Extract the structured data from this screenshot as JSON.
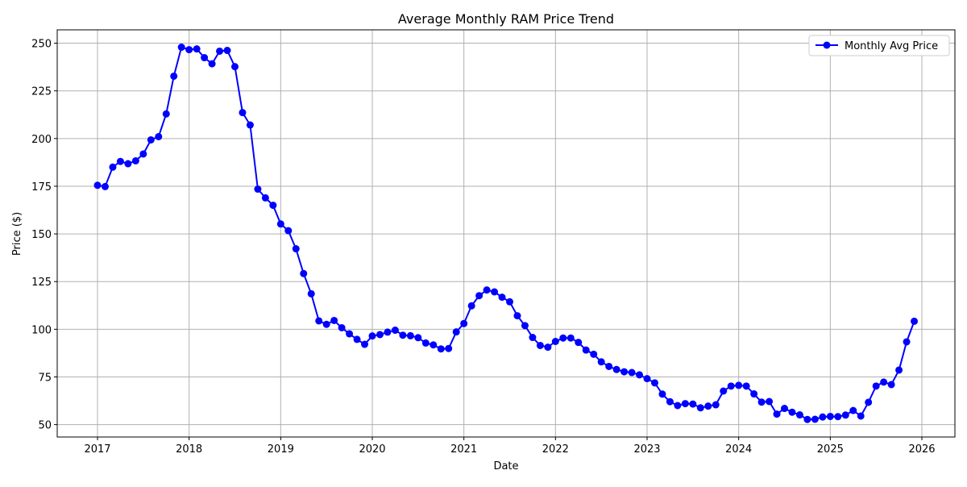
{
  "chart_data": {
    "type": "line",
    "title": "Average Monthly RAM Price Trend",
    "xlabel": "Date",
    "ylabel": "Price ($)",
    "xlim": [
      "2016-07",
      "2026-05"
    ],
    "ylim": [
      43.5,
      257
    ],
    "x_ticks": [
      "2017",
      "2018",
      "2019",
      "2020",
      "2021",
      "2022",
      "2023",
      "2024",
      "2025",
      "2026"
    ],
    "y_ticks": [
      50,
      75,
      100,
      125,
      150,
      175,
      200,
      225,
      250
    ],
    "grid": true,
    "legend": "top-right",
    "series": [
      {
        "name": "Monthly Avg Price",
        "color": "#0000ff",
        "marker": "circle",
        "start": "2017-01",
        "frequency": "monthly",
        "values": [
          175.5,
          174.8,
          185,
          188,
          186.8,
          188.3,
          191.9,
          199.3,
          201,
          212.9,
          232.7,
          247.9,
          246.6,
          247,
          242.4,
          239.2,
          245.8,
          246.2,
          237.7,
          213.6,
          207.1,
          173.5,
          168.9,
          165,
          155.2,
          151.7,
          142.2,
          129.2,
          118.6,
          104.4,
          102.6,
          104.6,
          100.8,
          97.6,
          94.7,
          92.1,
          96.5,
          97.2,
          98.5,
          99.5,
          96.9,
          96.6,
          95.6,
          92.8,
          91.8,
          89.7,
          89.9,
          98.6,
          103,
          112.3,
          117.6,
          120.6,
          119.6,
          116.8,
          114.4,
          107.1,
          101.9,
          95.7,
          91.5,
          90.6,
          93.6,
          95.4,
          95.4,
          93.1,
          89.1,
          86.9,
          82.9,
          80.5,
          78.9,
          77.7,
          77.3,
          76.1,
          74.1,
          71.9,
          66,
          62,
          60,
          61,
          60.8,
          58.8,
          59.7,
          60.4,
          67.6,
          70.2,
          70.6,
          70.2,
          66.1,
          61.8,
          62.1,
          55.5,
          58.5,
          56.5,
          55.1,
          52.7,
          52.8,
          54,
          54.3,
          54.2,
          55,
          57.4,
          54.5,
          61.7,
          70.2,
          72.3,
          71,
          78.6,
          93.4,
          104.2
        ]
      }
    ]
  }
}
